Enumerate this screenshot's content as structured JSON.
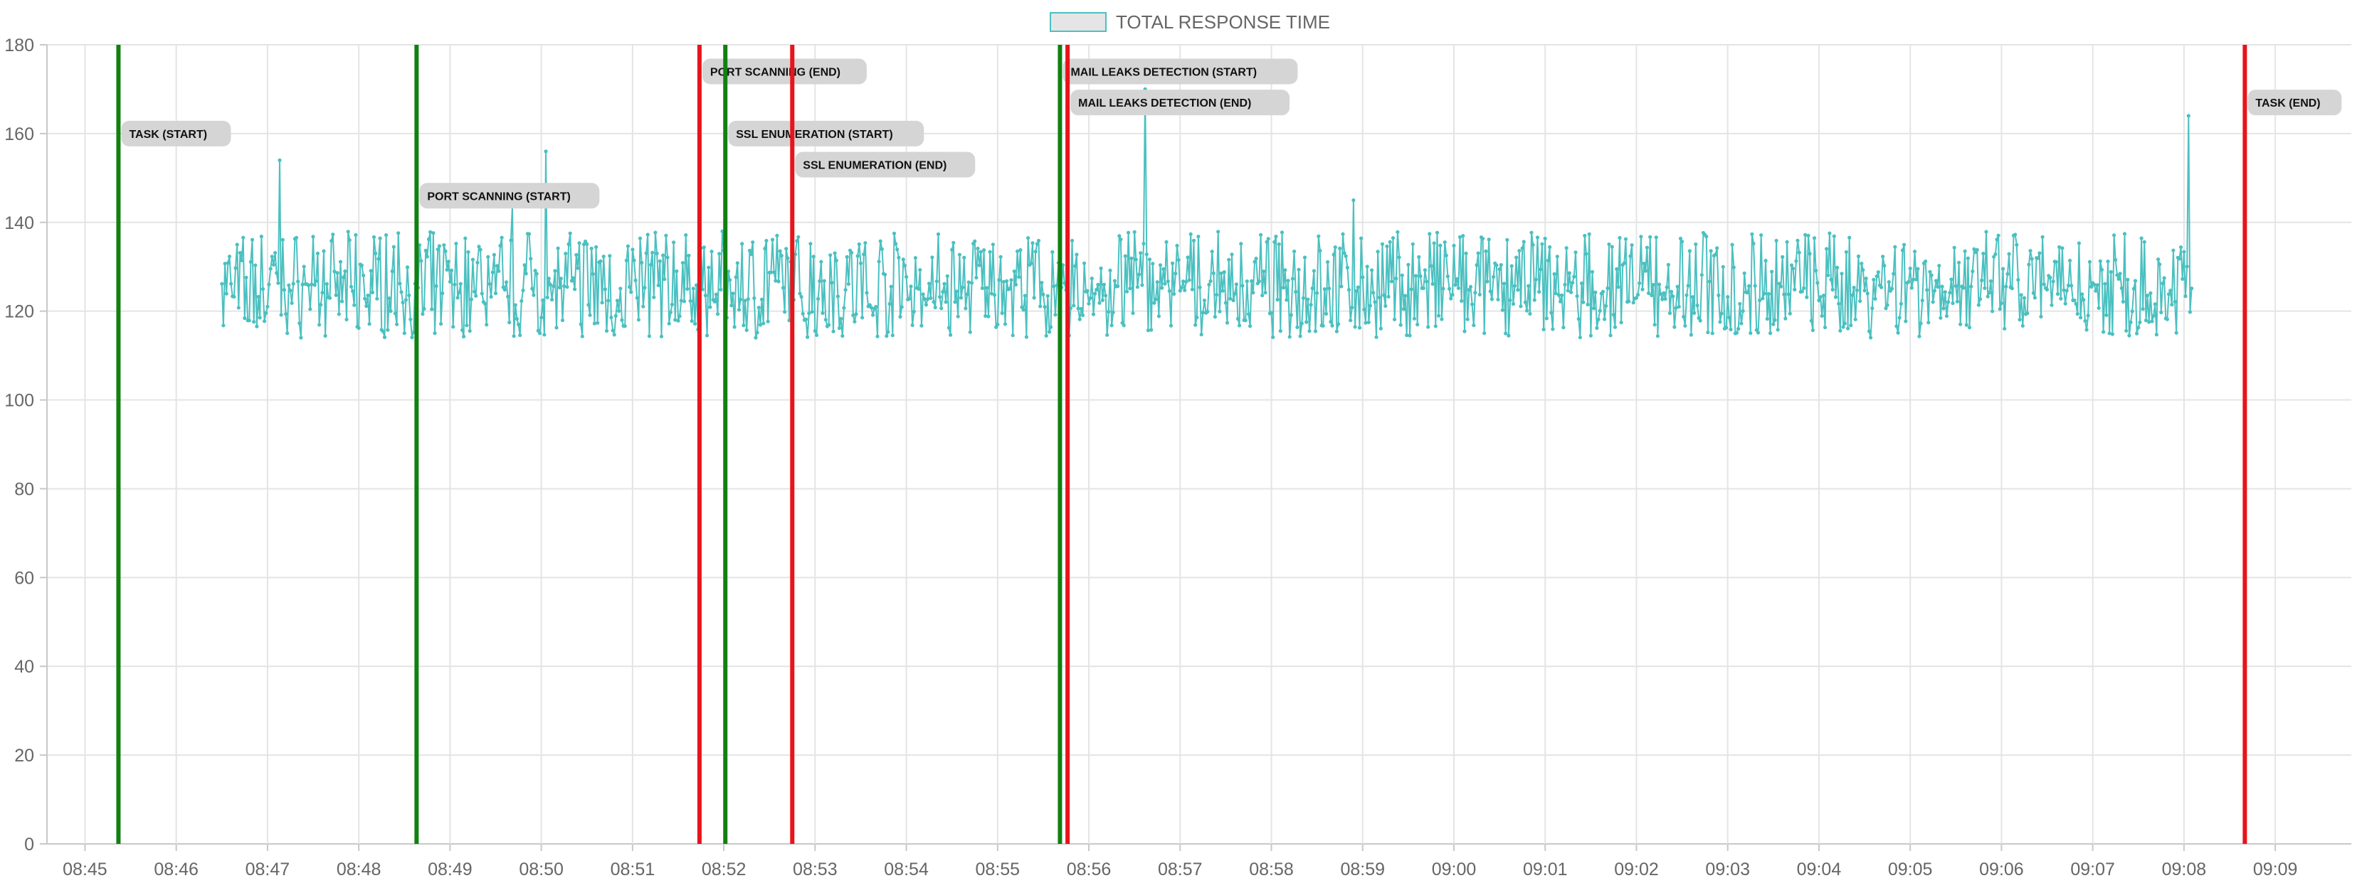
{
  "chart_data": {
    "type": "line",
    "title": "",
    "xlabel": "",
    "ylabel": "",
    "ylim": [
      0,
      180
    ],
    "y_ticks": [
      0,
      20,
      40,
      60,
      80,
      100,
      120,
      140,
      160,
      180
    ],
    "x_range": [
      "08:44:35",
      "09:09:50"
    ],
    "x_ticks": [
      "08:45",
      "08:46",
      "08:47",
      "08:48",
      "08:49",
      "08:50",
      "08:51",
      "08:52",
      "08:53",
      "08:54",
      "08:55",
      "08:56",
      "08:57",
      "08:58",
      "08:59",
      "09:00",
      "09:01",
      "09:02",
      "09:03",
      "09:04",
      "09:05",
      "09:06",
      "09:07",
      "09:08",
      "09:09"
    ],
    "grid": true,
    "legend_position": "top-center",
    "series": [
      {
        "name": "TOTAL RESPONSE TIME",
        "color": "#4bc0c0",
        "fill": "#e5e5e5",
        "start_time": "08:46:30",
        "end_time": "09:08:05",
        "seed": 7,
        "base_range": [
          114,
          138
        ],
        "spikes": [
          {
            "time": "08:47:08",
            "value": 154
          },
          {
            "time": "08:49:41",
            "value": 144
          },
          {
            "time": "08:50:03",
            "value": 156
          },
          {
            "time": "08:56:37",
            "value": 170
          },
          {
            "time": "08:58:54",
            "value": 145
          },
          {
            "time": "09:08:03",
            "value": 164
          }
        ]
      }
    ],
    "annotations": [
      {
        "label": "TASK (START)",
        "time": "08:45:22",
        "color": "#118011",
        "label_value": 160
      },
      {
        "label": "PORT SCANNING (START)",
        "time": "08:48:38",
        "color": "#118011",
        "label_value": 146
      },
      {
        "label": "PORT SCANNING (END)",
        "time": "08:51:44",
        "color": "#e8141b",
        "label_value": 174
      },
      {
        "label": "SSL ENUMERATION (START)",
        "time": "08:52:01",
        "color": "#118011",
        "label_value": 160
      },
      {
        "label": "SSL ENUMERATION (END)",
        "time": "08:52:45",
        "color": "#e8141b",
        "label_value": 153
      },
      {
        "label": "MAIL LEAKS DETECTION (START)",
        "time": "08:55:41",
        "color": "#118011",
        "label_value": 174
      },
      {
        "label": "MAIL LEAKS DETECTION (END)",
        "time": "08:55:46",
        "color": "#e8141b",
        "label_value": 167
      },
      {
        "label": "TASK (END)",
        "time": "09:08:40",
        "color": "#e8141b",
        "label_value": 167
      }
    ]
  }
}
